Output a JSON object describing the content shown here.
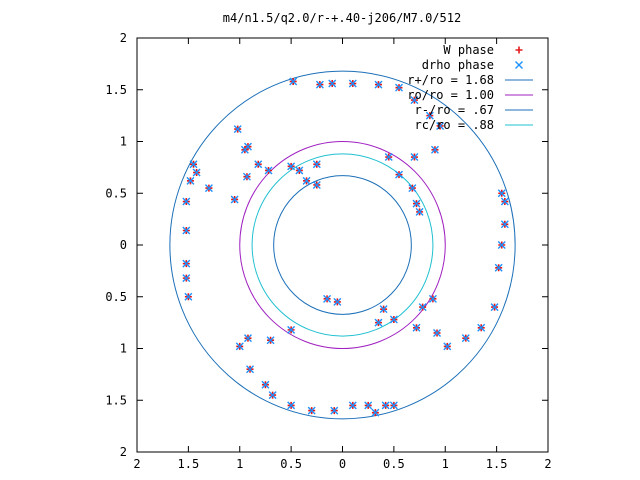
{
  "chart_data": {
    "type": "scatter",
    "title": "m4/n1.5/q2.0/r-+.40-j206/M7.0/512",
    "xlabel": "",
    "ylabel": "",
    "xlim": [
      -2,
      2
    ],
    "ylim": [
      -2,
      2
    ],
    "grid": false,
    "legend_position": "top-right",
    "x_ticks": [
      {
        "value": -2,
        "label": "2"
      },
      {
        "value": -1.5,
        "label": "1.5"
      },
      {
        "value": -1,
        "label": "1"
      },
      {
        "value": -0.5,
        "label": "0.5"
      },
      {
        "value": 0,
        "label": "0"
      },
      {
        "value": 0.5,
        "label": "0.5"
      },
      {
        "value": 1,
        "label": "1"
      },
      {
        "value": 1.5,
        "label": "1.5"
      },
      {
        "value": 2,
        "label": "2"
      }
    ],
    "y_ticks": [
      {
        "value": 2,
        "label": "2"
      },
      {
        "value": 1.5,
        "label": "1.5"
      },
      {
        "value": 1,
        "label": "1"
      },
      {
        "value": 0.5,
        "label": "0.5"
      },
      {
        "value": 0,
        "label": "0"
      },
      {
        "value": -0.5,
        "label": "0.5"
      },
      {
        "value": -1,
        "label": "1"
      },
      {
        "value": -1.5,
        "label": "1.5"
      },
      {
        "value": -2,
        "label": "2"
      }
    ],
    "circles": [
      {
        "name": "r+/ro = 1.68",
        "radius": 1.68,
        "color": "#1b6fb8"
      },
      {
        "name": "ro/ro = 1.00",
        "radius": 1.0,
        "color": "#a020c0"
      },
      {
        "name": "r-/ro = .67",
        "radius": 0.67,
        "color": "#1b6fb8"
      },
      {
        "name": "rc/ro = .88",
        "radius": 0.88,
        "color": "#20c0d0"
      }
    ],
    "series": [
      {
        "name": "W phase",
        "marker": "plus",
        "color": "#e41a1c",
        "points": [
          [
            -1.52,
            0.42
          ],
          [
            -1.52,
            0.14
          ],
          [
            -1.52,
            -0.18
          ],
          [
            -1.52,
            -0.32
          ],
          [
            -1.5,
            -0.5
          ],
          [
            -1.48,
            0.62
          ],
          [
            -1.45,
            0.78
          ],
          [
            -1.42,
            0.7
          ],
          [
            -1.3,
            0.55
          ],
          [
            -1.05,
            0.44
          ],
          [
            -0.93,
            0.66
          ],
          [
            -0.95,
            0.92
          ],
          [
            -1.02,
            1.12
          ],
          [
            -0.92,
            0.95
          ],
          [
            -0.82,
            0.78
          ],
          [
            -0.72,
            0.72
          ],
          [
            -0.5,
            0.76
          ],
          [
            -0.42,
            0.72
          ],
          [
            -0.25,
            0.78
          ],
          [
            -0.35,
            0.62
          ],
          [
            -0.25,
            0.58
          ],
          [
            -0.48,
            1.58
          ],
          [
            -0.22,
            1.55
          ],
          [
            -0.1,
            1.56
          ],
          [
            0.1,
            1.56
          ],
          [
            0.35,
            1.55
          ],
          [
            0.55,
            1.52
          ],
          [
            0.7,
            1.4
          ],
          [
            0.85,
            1.25
          ],
          [
            0.95,
            1.15
          ],
          [
            0.9,
            0.92
          ],
          [
            0.7,
            0.85
          ],
          [
            0.45,
            0.85
          ],
          [
            0.55,
            0.68
          ],
          [
            0.68,
            0.55
          ],
          [
            0.75,
            0.32
          ],
          [
            0.72,
            0.4
          ],
          [
            1.55,
            0.5
          ],
          [
            1.58,
            0.42
          ],
          [
            1.58,
            0.2
          ],
          [
            1.55,
            0.0
          ],
          [
            1.52,
            -0.22
          ],
          [
            1.48,
            -0.6
          ],
          [
            1.35,
            -0.8
          ],
          [
            1.2,
            -0.9
          ],
          [
            1.02,
            -0.98
          ],
          [
            0.92,
            -0.85
          ],
          [
            0.88,
            -0.52
          ],
          [
            0.78,
            -0.6
          ],
          [
            0.72,
            -0.8
          ],
          [
            0.5,
            -0.72
          ],
          [
            0.4,
            -0.62
          ],
          [
            0.35,
            -0.75
          ],
          [
            -0.15,
            -0.52
          ],
          [
            -0.05,
            -0.55
          ],
          [
            -0.5,
            -0.82
          ],
          [
            -0.7,
            -0.92
          ],
          [
            -0.92,
            -0.9
          ],
          [
            -1.0,
            -0.98
          ],
          [
            -0.9,
            -1.2
          ],
          [
            -0.75,
            -1.35
          ],
          [
            -0.68,
            -1.45
          ],
          [
            -0.5,
            -1.55
          ],
          [
            -0.3,
            -1.6
          ],
          [
            -0.08,
            -1.6
          ],
          [
            0.1,
            -1.55
          ],
          [
            0.25,
            -1.55
          ],
          [
            0.32,
            -1.62
          ],
          [
            0.42,
            -1.55
          ],
          [
            0.5,
            -1.55
          ]
        ]
      },
      {
        "name": "drho phase",
        "marker": "cross",
        "color": "#1e90ff",
        "points": [
          [
            -1.52,
            0.42
          ],
          [
            -1.52,
            0.14
          ],
          [
            -1.52,
            -0.18
          ],
          [
            -1.52,
            -0.32
          ],
          [
            -1.5,
            -0.5
          ],
          [
            -1.48,
            0.62
          ],
          [
            -1.45,
            0.78
          ],
          [
            -1.42,
            0.7
          ],
          [
            -1.3,
            0.55
          ],
          [
            -1.05,
            0.44
          ],
          [
            -0.93,
            0.66
          ],
          [
            -0.95,
            0.92
          ],
          [
            -1.02,
            1.12
          ],
          [
            -0.92,
            0.95
          ],
          [
            -0.82,
            0.78
          ],
          [
            -0.72,
            0.72
          ],
          [
            -0.5,
            0.76
          ],
          [
            -0.42,
            0.72
          ],
          [
            -0.25,
            0.78
          ],
          [
            -0.35,
            0.62
          ],
          [
            -0.25,
            0.58
          ],
          [
            -0.48,
            1.58
          ],
          [
            -0.22,
            1.55
          ],
          [
            -0.1,
            1.56
          ],
          [
            0.1,
            1.56
          ],
          [
            0.35,
            1.55
          ],
          [
            0.55,
            1.52
          ],
          [
            0.7,
            1.4
          ],
          [
            0.85,
            1.25
          ],
          [
            0.95,
            1.15
          ],
          [
            0.9,
            0.92
          ],
          [
            0.7,
            0.85
          ],
          [
            0.45,
            0.85
          ],
          [
            0.55,
            0.68
          ],
          [
            0.68,
            0.55
          ],
          [
            0.75,
            0.32
          ],
          [
            0.72,
            0.4
          ],
          [
            1.55,
            0.5
          ],
          [
            1.58,
            0.42
          ],
          [
            1.58,
            0.2
          ],
          [
            1.55,
            0.0
          ],
          [
            1.52,
            -0.22
          ],
          [
            1.48,
            -0.6
          ],
          [
            1.35,
            -0.8
          ],
          [
            1.2,
            -0.9
          ],
          [
            1.02,
            -0.98
          ],
          [
            0.92,
            -0.85
          ],
          [
            0.88,
            -0.52
          ],
          [
            0.78,
            -0.6
          ],
          [
            0.72,
            -0.8
          ],
          [
            0.5,
            -0.72
          ],
          [
            0.4,
            -0.62
          ],
          [
            0.35,
            -0.75
          ],
          [
            -0.15,
            -0.52
          ],
          [
            -0.05,
            -0.55
          ],
          [
            -0.5,
            -0.82
          ],
          [
            -0.7,
            -0.92
          ],
          [
            -0.92,
            -0.9
          ],
          [
            -1.0,
            -0.98
          ],
          [
            -0.9,
            -1.2
          ],
          [
            -0.75,
            -1.35
          ],
          [
            -0.68,
            -1.45
          ],
          [
            -0.5,
            -1.55
          ],
          [
            -0.3,
            -1.6
          ],
          [
            -0.08,
            -1.6
          ],
          [
            0.1,
            -1.55
          ],
          [
            0.25,
            -1.55
          ],
          [
            0.32,
            -1.62
          ],
          [
            0.42,
            -1.55
          ],
          [
            0.5,
            -1.55
          ]
        ]
      }
    ],
    "legend": [
      {
        "label": "W phase",
        "marker": "plus",
        "color": "#e41a1c"
      },
      {
        "label": "drho phase",
        "marker": "cross",
        "color": "#1e90ff"
      },
      {
        "label": "r+/ro = 1.68",
        "marker": "line",
        "color": "#1b6fb8"
      },
      {
        "label": "ro/ro = 1.00",
        "marker": "line",
        "color": "#a020c0"
      },
      {
        "label": "r-/ro = .67",
        "marker": "line",
        "color": "#1b6fb8"
      },
      {
        "label": "rc/ro = .88",
        "marker": "line",
        "color": "#20c0d0"
      }
    ]
  }
}
